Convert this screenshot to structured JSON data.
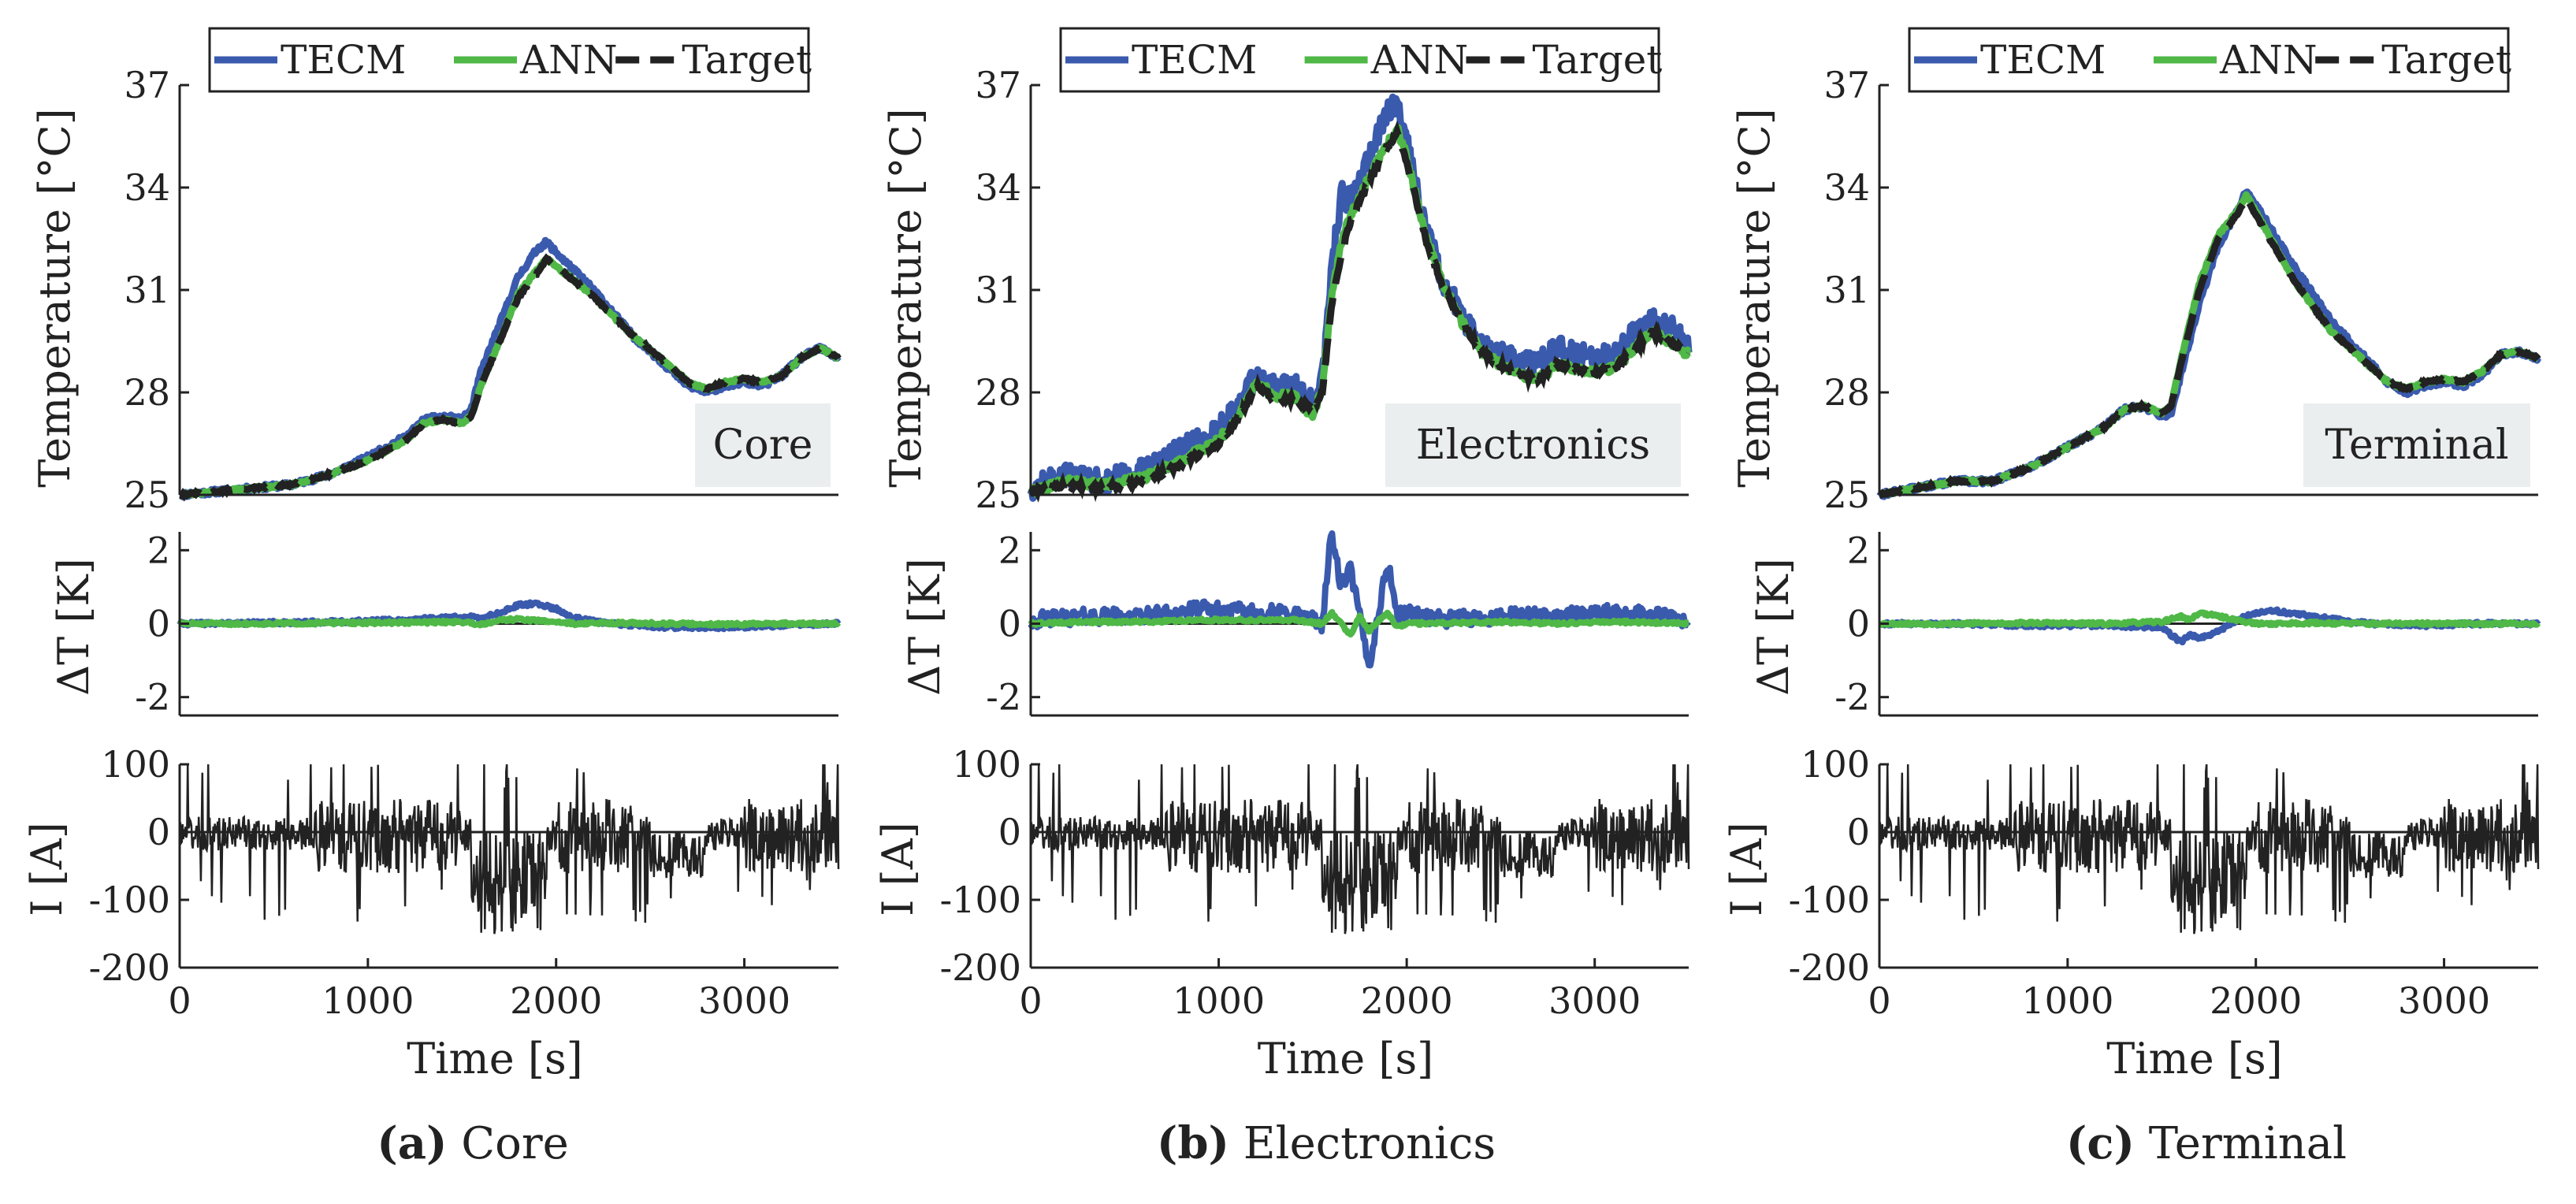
{
  "colors": {
    "tecm": "#3a5aad",
    "ann": "#4fb847",
    "target": "#222222",
    "current": "#222222",
    "label_box": "#ebeeee"
  },
  "legend": {
    "tecm": "TECM",
    "ann": "ANN",
    "target": "Target"
  },
  "axes_text": {
    "temperature_ylabel": "Temperature [°C]",
    "delta_ylabel": "ΔT [K]",
    "current_ylabel": "I [A]",
    "xlabel": "Time [s]",
    "temp_ticks": [
      "25",
      "28",
      "31",
      "34",
      "37"
    ],
    "delta_ticks": [
      "2",
      "0",
      "-2"
    ],
    "current_ticks": [
      "100",
      "0",
      "-100",
      "-200"
    ],
    "time_ticks": [
      "0",
      "1000",
      "2000",
      "3000"
    ]
  },
  "captions": [
    {
      "letter": "(a)",
      "name": "Core"
    },
    {
      "letter": "(b)",
      "name": "Electronics"
    },
    {
      "letter": "(c)",
      "name": "Terminal"
    }
  ],
  "chart_data": [
    {
      "type": "line",
      "title": "Core",
      "xlabel": "Time [s]",
      "xlim": [
        0,
        3500
      ],
      "temperature": {
        "ylabel": "Temperature [°C]",
        "ylim": [
          25,
          37
        ],
        "x": [
          0,
          200,
          400,
          600,
          800,
          1000,
          1200,
          1300,
          1400,
          1500,
          1550,
          1600,
          1700,
          1800,
          1900,
          1950,
          2000,
          2200,
          2400,
          2600,
          2700,
          2800,
          2900,
          3000,
          3100,
          3200,
          3300,
          3400,
          3500
        ],
        "series": [
          {
            "name": "Target",
            "values": [
              25.0,
              25.1,
              25.2,
              25.3,
              25.6,
              26.0,
              26.6,
              27.1,
              27.2,
              27.1,
              27.3,
              28.2,
              29.5,
              30.8,
              31.5,
              31.9,
              31.7,
              30.8,
              29.7,
              28.8,
              28.3,
              28.1,
              28.3,
              28.4,
              28.3,
              28.5,
              29.0,
              29.3,
              29.0
            ]
          },
          {
            "name": "ANN",
            "values": [
              25.0,
              25.1,
              25.2,
              25.3,
              25.6,
              26.0,
              26.6,
              27.1,
              27.2,
              27.1,
              27.3,
              28.2,
              29.5,
              30.9,
              31.6,
              31.9,
              31.7,
              30.8,
              29.7,
              28.8,
              28.3,
              28.1,
              28.3,
              28.4,
              28.3,
              28.5,
              29.0,
              29.3,
              29.0
            ]
          },
          {
            "name": "TECM",
            "values": [
              25.0,
              25.1,
              25.2,
              25.3,
              25.6,
              26.1,
              26.7,
              27.2,
              27.3,
              27.2,
              27.5,
              28.6,
              30.0,
              31.4,
              32.2,
              32.4,
              32.1,
              31.0,
              29.7,
              28.7,
              28.2,
              28.0,
              28.2,
              28.3,
              28.2,
              28.5,
              29.0,
              29.3,
              29.0
            ]
          }
        ]
      },
      "delta_t": {
        "ylabel": "ΔT [K]",
        "ylim": [
          -2.5,
          2.5
        ],
        "x": [
          0,
          400,
          800,
          1200,
          1500,
          1600,
          1700,
          1800,
          1900,
          2000,
          2100,
          2300,
          2600,
          2900,
          3200,
          3500
        ],
        "series": [
          {
            "name": "TECM",
            "values": [
              0.0,
              0.02,
              0.05,
              0.1,
              0.2,
              0.15,
              0.3,
              0.5,
              0.55,
              0.4,
              0.15,
              0.0,
              -0.1,
              -0.1,
              -0.05,
              0.0
            ]
          },
          {
            "name": "ANN",
            "values": [
              0.0,
              0.0,
              0.02,
              0.03,
              0.05,
              -0.02,
              0.1,
              0.12,
              0.08,
              0.05,
              0.0,
              0.02,
              0.0,
              -0.02,
              0.0,
              0.0
            ]
          }
        ]
      },
      "current": {
        "ylabel": "I [A]",
        "ylim": [
          -200,
          100
        ],
        "description": "drive-cycle current trace, approximately -160 A to 100 A",
        "range": [
          -160,
          100
        ]
      },
      "annotation": "Core"
    },
    {
      "type": "line",
      "title": "Electronics",
      "xlabel": "Time [s]",
      "xlim": [
        0,
        3500
      ],
      "temperature": {
        "ylabel": "Temperature [°C]",
        "ylim": [
          25,
          37
        ],
        "x": [
          0,
          200,
          400,
          600,
          800,
          1000,
          1100,
          1200,
          1300,
          1400,
          1500,
          1550,
          1600,
          1650,
          1700,
          1800,
          1900,
          1950,
          2000,
          2100,
          2200,
          2300,
          2400,
          2500,
          2600,
          2700,
          2800,
          2900,
          3000,
          3100,
          3200,
          3300,
          3400,
          3500
        ],
        "series": [
          {
            "name": "Target",
            "values": [
              25.1,
              25.3,
              25.2,
              25.4,
              25.9,
              26.5,
              27.2,
              28.2,
              27.8,
              27.8,
              27.5,
              28.0,
              30.5,
              32.0,
              33.0,
              34.2,
              35.2,
              35.6,
              34.8,
              32.5,
              31.0,
              30.0,
              29.2,
              28.8,
              28.5,
              28.4,
              28.8,
              28.7,
              28.6,
              28.7,
              29.2,
              29.8,
              29.5,
              29.1
            ]
          },
          {
            "name": "ANN",
            "values": [
              25.1,
              25.4,
              25.3,
              25.5,
              26.0,
              26.6,
              27.3,
              28.3,
              27.9,
              27.9,
              27.3,
              28.1,
              30.8,
              32.3,
              33.2,
              34.3,
              35.3,
              35.7,
              34.9,
              32.6,
              31.1,
              30.0,
              29.2,
              28.8,
              28.5,
              28.4,
              28.8,
              28.7,
              28.6,
              28.7,
              29.2,
              29.8,
              29.5,
              29.1
            ]
          },
          {
            "name": "TECM",
            "values": [
              25.2,
              25.6,
              25.4,
              25.7,
              26.3,
              26.9,
              27.6,
              28.5,
              28.1,
              28.2,
              27.7,
              28.3,
              31.5,
              33.8,
              33.6,
              35.0,
              36.2,
              36.6,
              35.3,
              32.8,
              31.2,
              30.2,
              29.4,
              29.2,
              28.8,
              28.9,
              29.3,
              29.1,
              29.0,
              29.1,
              29.7,
              30.1,
              29.9,
              29.4
            ]
          }
        ]
      },
      "delta_t": {
        "ylabel": "ΔT [K]",
        "ylim": [
          -2.5,
          2.5
        ],
        "x": [
          0,
          300,
          600,
          900,
          1200,
          1400,
          1550,
          1600,
          1650,
          1700,
          1750,
          1800,
          1850,
          1900,
          1950,
          2000,
          2200,
          2500,
          2800,
          3100,
          3400,
          3500
        ],
        "series": [
          {
            "name": "TECM",
            "values": [
              0.1,
              0.2,
              0.2,
              0.4,
              0.3,
              0.3,
              0.0,
              2.5,
              1.0,
              1.5,
              0.2,
              -1.2,
              0.3,
              1.7,
              0.2,
              0.3,
              0.1,
              0.2,
              0.2,
              0.3,
              0.2,
              0.0
            ]
          },
          {
            "name": "ANN",
            "values": [
              0.0,
              0.05,
              0.05,
              0.1,
              0.1,
              0.1,
              0.0,
              0.3,
              0.0,
              -0.3,
              0.2,
              -0.2,
              0.1,
              0.3,
              -0.1,
              0.0,
              0.02,
              0.05,
              0.0,
              0.05,
              0.02,
              0.0
            ]
          }
        ]
      },
      "current": {
        "ylabel": "I [A]",
        "ylim": [
          -200,
          100
        ],
        "description": "drive-cycle current trace, approximately -160 A to 100 A",
        "range": [
          -160,
          100
        ]
      },
      "annotation": "Electronics"
    },
    {
      "type": "line",
      "title": "Terminal",
      "xlabel": "Time [s]",
      "xlim": [
        0,
        3500
      ],
      "temperature": {
        "ylabel": "Temperature [°C]",
        "ylim": [
          25,
          37
        ],
        "x": [
          0,
          200,
          400,
          600,
          800,
          1000,
          1200,
          1300,
          1400,
          1500,
          1550,
          1600,
          1700,
          1800,
          1900,
          1950,
          2000,
          2200,
          2400,
          2600,
          2700,
          2800,
          2900,
          3000,
          3100,
          3200,
          3300,
          3400,
          3500
        ],
        "series": [
          {
            "name": "Target",
            "values": [
              25.0,
              25.2,
              25.4,
              25.4,
              25.8,
              26.4,
              27.0,
              27.5,
              27.6,
              27.4,
              27.6,
              28.8,
              31.0,
              32.5,
              33.2,
              33.7,
              33.2,
              31.3,
              29.8,
              28.8,
              28.3,
              28.1,
              28.3,
              28.4,
              28.3,
              28.6,
              29.1,
              29.2,
              29.0
            ]
          },
          {
            "name": "ANN",
            "values": [
              25.0,
              25.2,
              25.4,
              25.4,
              25.8,
              26.4,
              27.0,
              27.5,
              27.6,
              27.4,
              27.6,
              28.9,
              31.2,
              32.6,
              33.3,
              33.8,
              33.3,
              31.3,
              29.8,
              28.8,
              28.3,
              28.1,
              28.3,
              28.4,
              28.3,
              28.6,
              29.1,
              29.2,
              29.0
            ]
          },
          {
            "name": "TECM",
            "values": [
              25.0,
              25.2,
              25.4,
              25.4,
              25.8,
              26.4,
              27.0,
              27.5,
              27.6,
              27.3,
              27.4,
              28.5,
              30.6,
              32.3,
              33.3,
              33.9,
              33.5,
              31.7,
              30.1,
              28.9,
              28.3,
              28.0,
              28.2,
              28.3,
              28.2,
              28.5,
              29.1,
              29.2,
              29.0
            ]
          }
        ]
      },
      "delta_t": {
        "ylabel": "ΔT [K]",
        "ylim": [
          -2.5,
          2.5
        ],
        "x": [
          0,
          400,
          800,
          1200,
          1500,
          1600,
          1650,
          1700,
          1800,
          1900,
          2000,
          2100,
          2300,
          2600,
          2900,
          3200,
          3500
        ],
        "series": [
          {
            "name": "TECM",
            "values": [
              0.0,
              0.0,
              -0.05,
              -0.05,
              -0.1,
              -0.5,
              -0.3,
              -0.4,
              -0.2,
              0.1,
              0.3,
              0.35,
              0.2,
              0.0,
              -0.05,
              0.0,
              0.0
            ]
          },
          {
            "name": "ANN",
            "values": [
              0.0,
              0.0,
              0.02,
              0.0,
              0.05,
              0.2,
              0.1,
              0.3,
              0.2,
              0.1,
              0.0,
              0.0,
              0.02,
              0.0,
              0.0,
              0.0,
              0.0
            ]
          }
        ]
      },
      "current": {
        "ylabel": "I [A]",
        "ylim": [
          -200,
          100
        ],
        "description": "drive-cycle current trace, approximately -160 A to 100 A",
        "range": [
          -160,
          100
        ]
      },
      "annotation": "Terminal"
    }
  ]
}
